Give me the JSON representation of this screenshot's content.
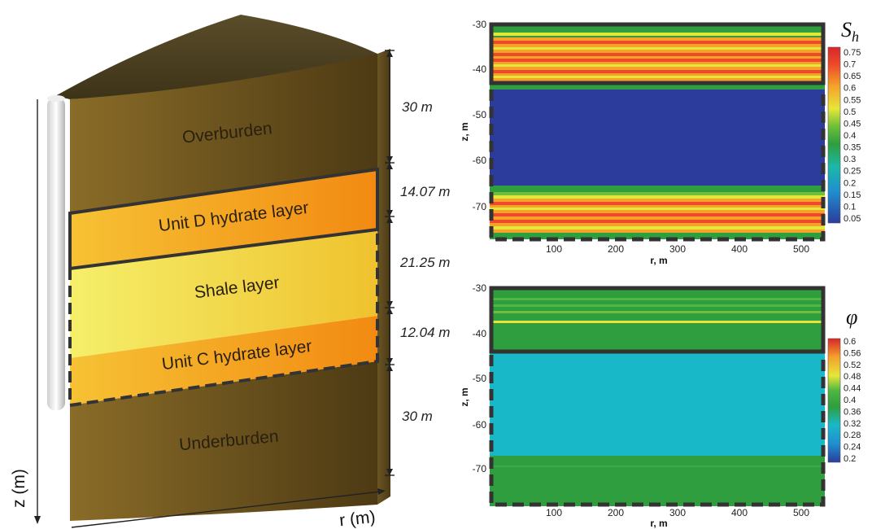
{
  "block": {
    "layers": [
      {
        "name": "Overburden",
        "thickness": "30 m",
        "color": "#7a5f22"
      },
      {
        "name": "Unit D hydrate layer",
        "thickness": "14.07 m",
        "color": "#f4a62a"
      },
      {
        "name": "Shale layer",
        "thickness": "21.25 m",
        "color": "#f2d94a"
      },
      {
        "name": "Unit C hydrate layer",
        "thickness": "12.04 m",
        "color": "#f4a62a"
      },
      {
        "name": "Underburden",
        "thickness": "30 m",
        "color": "#7a5f22"
      }
    ],
    "z_axis_label": "z (m)",
    "r_axis_label": "r (m)"
  },
  "plots": [
    {
      "symbol": "S",
      "symbol_sub": "h",
      "xlabel": "r, m",
      "ylabel": "z, m",
      "x_ticks": [
        "100",
        "200",
        "300",
        "400",
        "500"
      ],
      "y_ticks": [
        "-30",
        "-40",
        "-50",
        "-60",
        "-70"
      ],
      "colorbar_ticks": [
        "0.75",
        "0.7",
        "0.65",
        "0.6",
        "0.55",
        "0.5",
        "0.45",
        "0.4",
        "0.35",
        "0.3",
        "0.25",
        "0.2",
        "0.15",
        "0.1",
        "0.05"
      ]
    },
    {
      "symbol": "φ",
      "symbol_sub": "",
      "xlabel": "r, m",
      "ylabel": "z, m",
      "x_ticks": [
        "100",
        "200",
        "300",
        "400",
        "500"
      ],
      "y_ticks": [
        "-30",
        "-40",
        "-50",
        "-60",
        "-70"
      ],
      "colorbar_ticks": [
        "0.6",
        "0.56",
        "0.52",
        "0.48",
        "0.44",
        "0.4",
        "0.36",
        "0.32",
        "0.28",
        "0.24",
        "0.2"
      ]
    }
  ]
}
